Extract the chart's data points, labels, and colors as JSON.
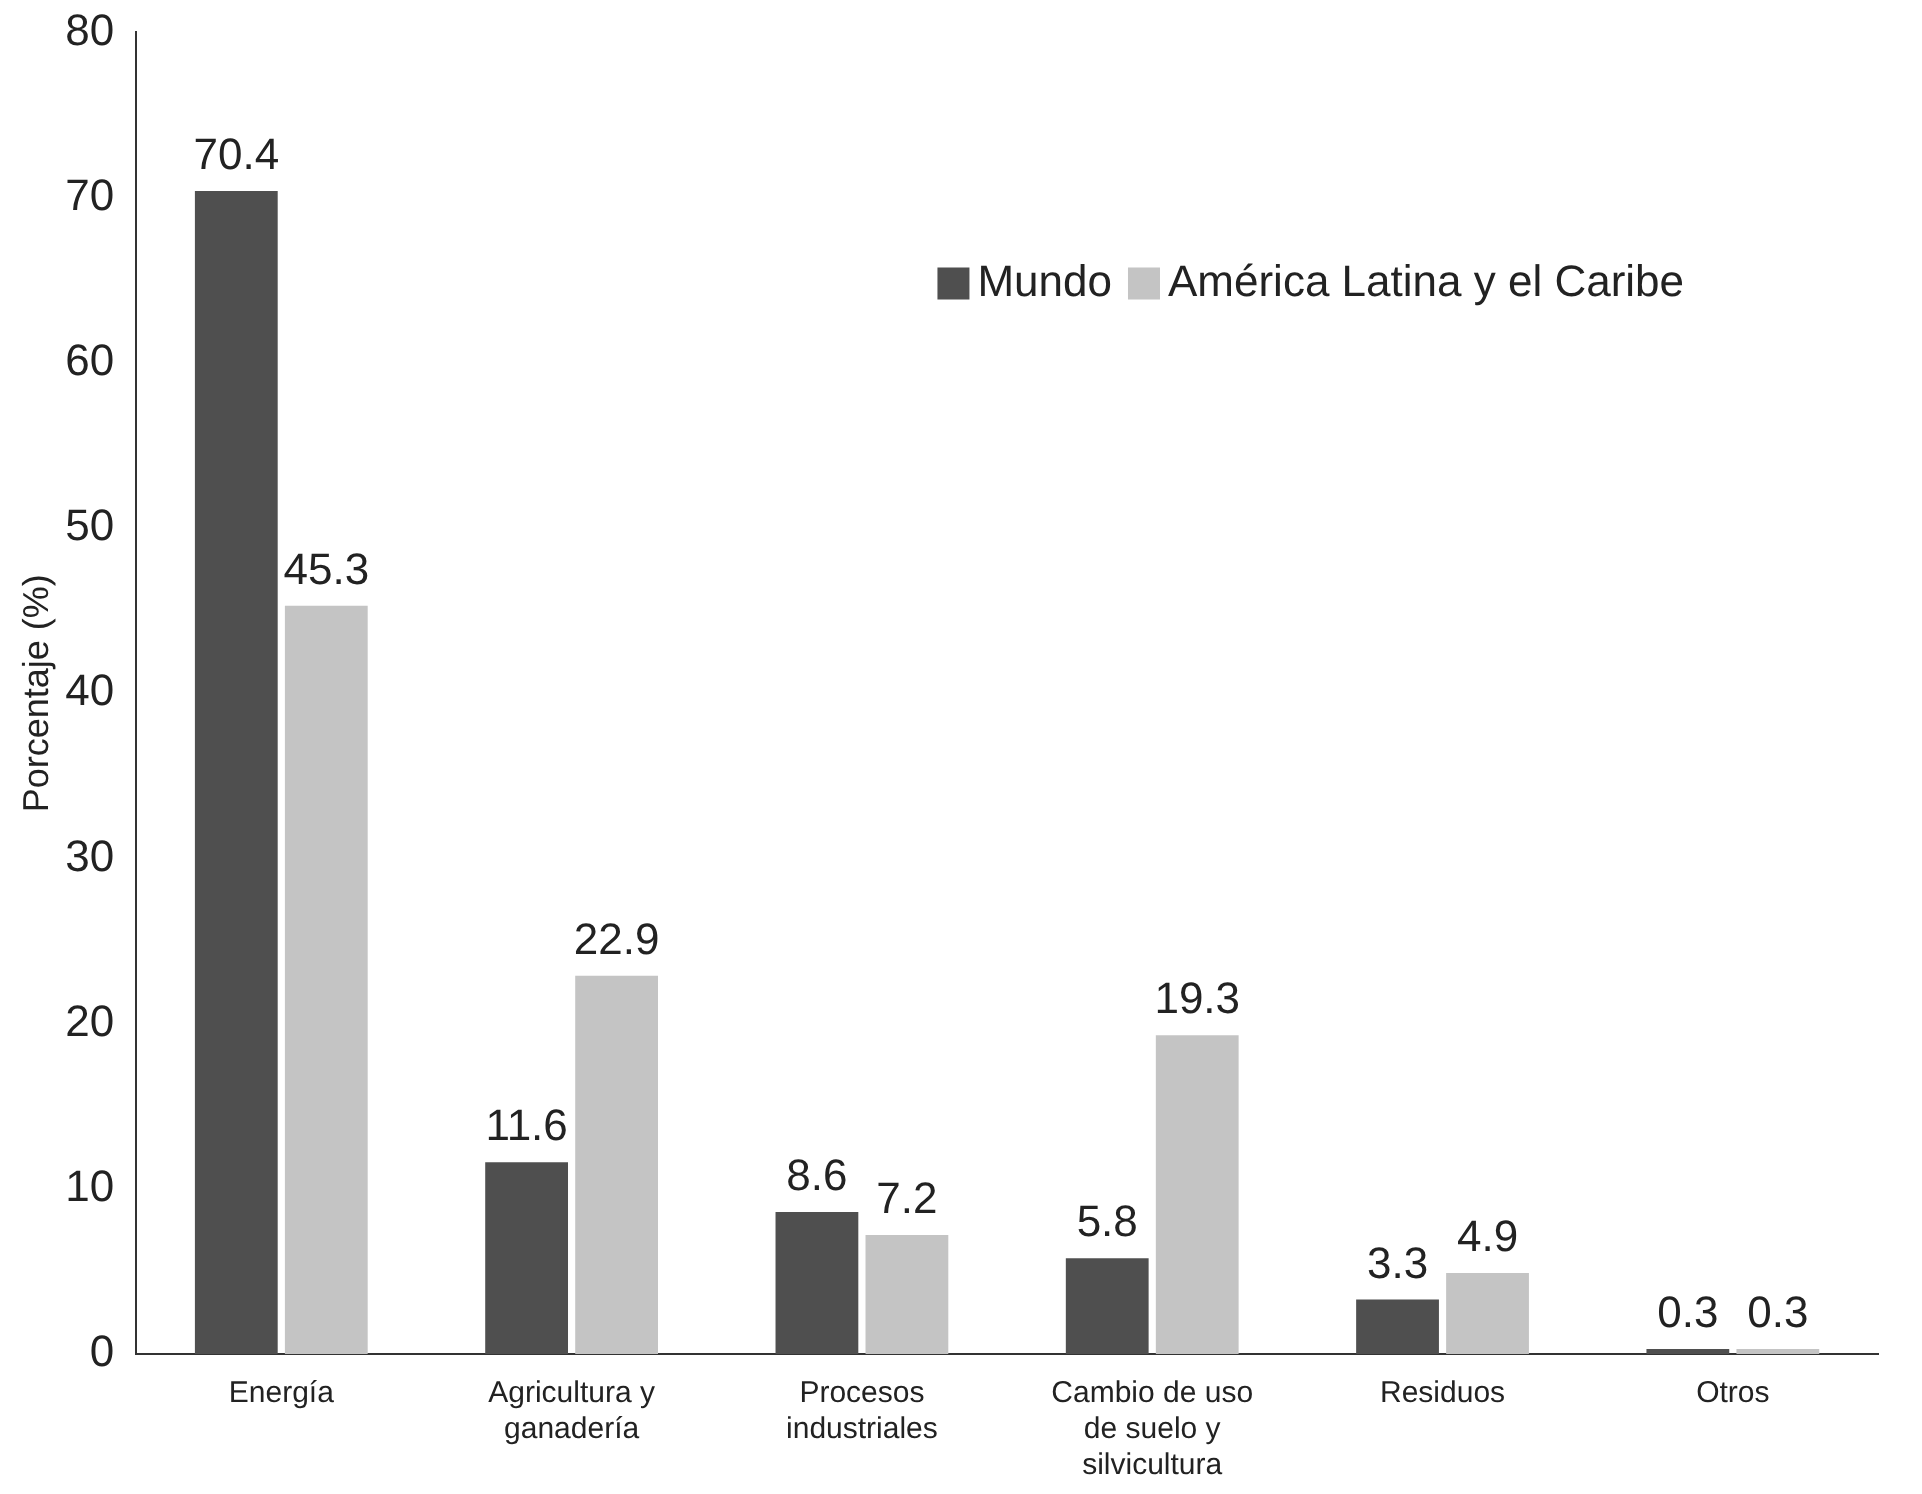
{
  "chart_data": {
    "type": "bar",
    "ylabel": "Porcentaje (%)",
    "categories": [
      "Energía",
      "Agricultura y ganadería",
      "Procesos industriales",
      "Cambio de uso de suelo y silvicultura",
      "Residuos",
      "Otros"
    ],
    "series": [
      {
        "name": "Mundo",
        "color": "#4f4f4f",
        "values": [
          70.4,
          11.6,
          8.6,
          5.8,
          3.3,
          0.3
        ]
      },
      {
        "name": "América Latina y el Caribe",
        "color": "#c4c4c4",
        "values": [
          45.3,
          22.9,
          7.2,
          19.3,
          4.9,
          0.3
        ]
      }
    ],
    "ylim": [
      0,
      80
    ],
    "yticks": [
      0,
      10,
      20,
      30,
      40,
      50,
      60,
      70,
      80
    ],
    "data_labels": true,
    "legend": "top right"
  }
}
